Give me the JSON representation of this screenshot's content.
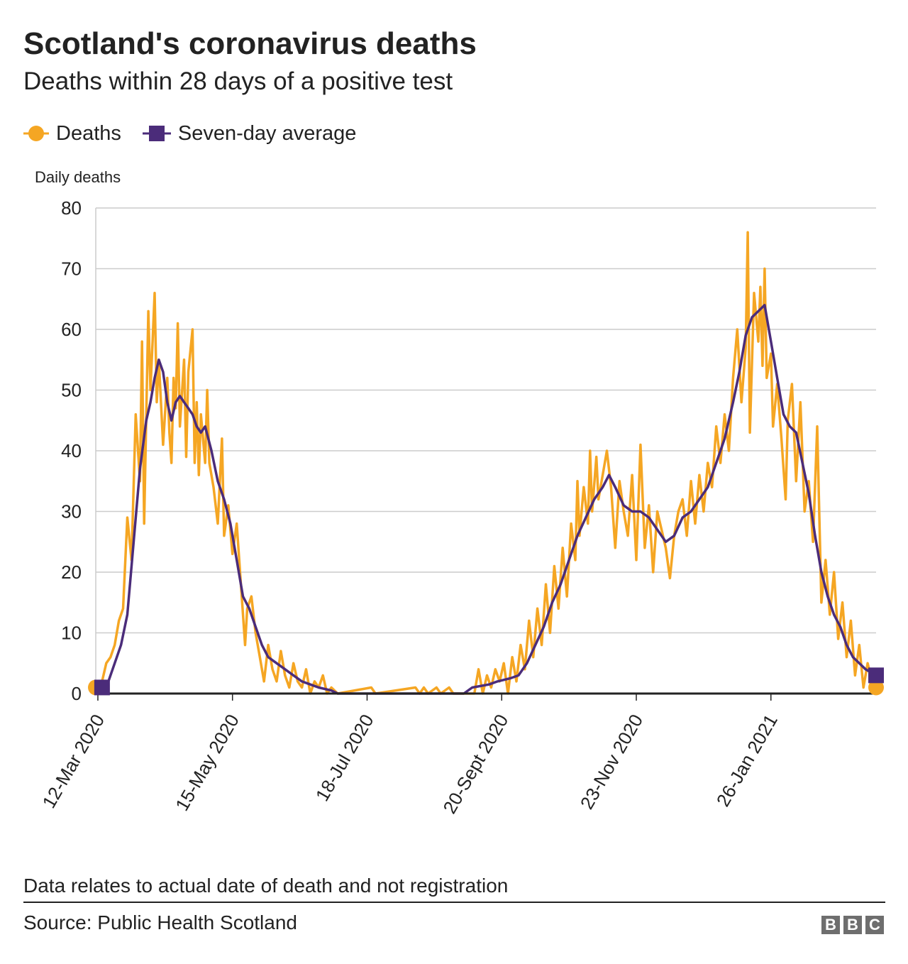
{
  "header": {
    "title": "Scotland's coronavirus deaths",
    "subtitle": "Deaths within 28 days of a positive test"
  },
  "legend": {
    "deaths_label": "Deaths",
    "average_label": "Seven-day average"
  },
  "colors": {
    "deaths": "#f5a623",
    "average": "#4b2c7a",
    "grid": "#cccccc",
    "axis": "#222222"
  },
  "chart_data": {
    "type": "line",
    "ylabel": "Daily deaths",
    "ylim": [
      0,
      80
    ],
    "yticks": [
      0,
      10,
      20,
      30,
      40,
      50,
      60,
      70,
      80
    ],
    "x_start": "2020-03-11",
    "x_end": "2021-03-17",
    "xticks": [
      {
        "date": "2020-03-12",
        "label": "12-Mar 2020"
      },
      {
        "date": "2020-05-15",
        "label": "15-May 2020"
      },
      {
        "date": "2020-07-18",
        "label": "18-Jul 2020"
      },
      {
        "date": "2020-09-20",
        "label": "20-Sept 2020"
      },
      {
        "date": "2020-11-23",
        "label": "23-Nov 2020"
      },
      {
        "date": "2021-01-26",
        "label": "26-Jan 2021"
      }
    ],
    "series": [
      {
        "name": "Deaths",
        "marker": "circle",
        "points": [
          [
            "2020-03-11",
            1
          ],
          [
            "2020-03-14",
            2
          ],
          [
            "2020-03-16",
            5
          ],
          [
            "2020-03-18",
            6
          ],
          [
            "2020-03-20",
            8
          ],
          [
            "2020-03-22",
            12
          ],
          [
            "2020-03-24",
            14
          ],
          [
            "2020-03-26",
            29
          ],
          [
            "2020-03-28",
            22
          ],
          [
            "2020-03-30",
            46
          ],
          [
            "2020-04-01",
            35
          ],
          [
            "2020-04-02",
            58
          ],
          [
            "2020-04-03",
            28
          ],
          [
            "2020-04-05",
            63
          ],
          [
            "2020-04-06",
            50
          ],
          [
            "2020-04-07",
            58
          ],
          [
            "2020-04-08",
            66
          ],
          [
            "2020-04-09",
            48
          ],
          [
            "2020-04-10",
            55
          ],
          [
            "2020-04-12",
            41
          ],
          [
            "2020-04-14",
            52
          ],
          [
            "2020-04-15",
            43
          ],
          [
            "2020-04-16",
            38
          ],
          [
            "2020-04-17",
            52
          ],
          [
            "2020-04-18",
            47
          ],
          [
            "2020-04-19",
            61
          ],
          [
            "2020-04-20",
            44
          ],
          [
            "2020-04-22",
            55
          ],
          [
            "2020-04-23",
            39
          ],
          [
            "2020-04-24",
            53
          ],
          [
            "2020-04-26",
            60
          ],
          [
            "2020-04-27",
            38
          ],
          [
            "2020-04-28",
            48
          ],
          [
            "2020-04-29",
            36
          ],
          [
            "2020-04-30",
            46
          ],
          [
            "2020-05-02",
            38
          ],
          [
            "2020-05-03",
            50
          ],
          [
            "2020-05-04",
            38
          ],
          [
            "2020-05-06",
            34
          ],
          [
            "2020-05-08",
            28
          ],
          [
            "2020-05-10",
            42
          ],
          [
            "2020-05-11",
            26
          ],
          [
            "2020-05-13",
            31
          ],
          [
            "2020-05-15",
            23
          ],
          [
            "2020-05-17",
            28
          ],
          [
            "2020-05-19",
            18
          ],
          [
            "2020-05-21",
            8
          ],
          [
            "2020-05-22",
            14
          ],
          [
            "2020-05-24",
            16
          ],
          [
            "2020-05-26",
            10
          ],
          [
            "2020-05-28",
            6
          ],
          [
            "2020-05-30",
            2
          ],
          [
            "2020-06-01",
            8
          ],
          [
            "2020-06-03",
            4
          ],
          [
            "2020-06-05",
            2
          ],
          [
            "2020-06-07",
            7
          ],
          [
            "2020-06-09",
            3
          ],
          [
            "2020-06-11",
            1
          ],
          [
            "2020-06-13",
            5
          ],
          [
            "2020-06-15",
            2
          ],
          [
            "2020-06-17",
            1
          ],
          [
            "2020-06-19",
            4
          ],
          [
            "2020-06-21",
            0
          ],
          [
            "2020-06-23",
            2
          ],
          [
            "2020-06-25",
            1
          ],
          [
            "2020-06-27",
            3
          ],
          [
            "2020-06-29",
            0
          ],
          [
            "2020-07-01",
            1
          ],
          [
            "2020-07-04",
            0
          ],
          [
            "2020-07-20",
            1
          ],
          [
            "2020-07-22",
            0
          ],
          [
            "2020-08-10",
            1
          ],
          [
            "2020-08-12",
            0
          ],
          [
            "2020-08-14",
            1
          ],
          [
            "2020-08-16",
            0
          ],
          [
            "2020-08-20",
            1
          ],
          [
            "2020-08-22",
            0
          ],
          [
            "2020-08-26",
            1
          ],
          [
            "2020-08-28",
            0
          ],
          [
            "2020-09-07",
            0
          ],
          [
            "2020-09-09",
            4
          ],
          [
            "2020-09-11",
            0
          ],
          [
            "2020-09-13",
            3
          ],
          [
            "2020-09-15",
            1
          ],
          [
            "2020-09-17",
            4
          ],
          [
            "2020-09-19",
            2
          ],
          [
            "2020-09-21",
            5
          ],
          [
            "2020-09-23",
            0
          ],
          [
            "2020-09-25",
            6
          ],
          [
            "2020-09-27",
            2
          ],
          [
            "2020-09-29",
            8
          ],
          [
            "2020-10-01",
            4
          ],
          [
            "2020-10-03",
            12
          ],
          [
            "2020-10-05",
            6
          ],
          [
            "2020-10-07",
            14
          ],
          [
            "2020-10-09",
            8
          ],
          [
            "2020-10-11",
            18
          ],
          [
            "2020-10-13",
            10
          ],
          [
            "2020-10-15",
            21
          ],
          [
            "2020-10-17",
            14
          ],
          [
            "2020-10-19",
            24
          ],
          [
            "2020-10-21",
            16
          ],
          [
            "2020-10-23",
            28
          ],
          [
            "2020-10-25",
            22
          ],
          [
            "2020-10-26",
            35
          ],
          [
            "2020-10-27",
            26
          ],
          [
            "2020-10-29",
            34
          ],
          [
            "2020-10-31",
            28
          ],
          [
            "2020-11-01",
            40
          ],
          [
            "2020-11-02",
            30
          ],
          [
            "2020-11-04",
            39
          ],
          [
            "2020-11-05",
            32
          ],
          [
            "2020-11-07",
            36
          ],
          [
            "2020-11-09",
            40
          ],
          [
            "2020-11-11",
            34
          ],
          [
            "2020-11-13",
            24
          ],
          [
            "2020-11-15",
            35
          ],
          [
            "2020-11-17",
            30
          ],
          [
            "2020-11-19",
            26
          ],
          [
            "2020-11-21",
            36
          ],
          [
            "2020-11-23",
            22
          ],
          [
            "2020-11-25",
            41
          ],
          [
            "2020-11-27",
            24
          ],
          [
            "2020-11-29",
            31
          ],
          [
            "2020-12-01",
            20
          ],
          [
            "2020-12-03",
            30
          ],
          [
            "2020-12-05",
            27
          ],
          [
            "2020-12-07",
            24
          ],
          [
            "2020-12-09",
            19
          ],
          [
            "2020-12-11",
            26
          ],
          [
            "2020-12-13",
            30
          ],
          [
            "2020-12-15",
            32
          ],
          [
            "2020-12-17",
            26
          ],
          [
            "2020-12-19",
            35
          ],
          [
            "2020-12-21",
            28
          ],
          [
            "2020-12-23",
            36
          ],
          [
            "2020-12-25",
            30
          ],
          [
            "2020-12-27",
            38
          ],
          [
            "2020-12-29",
            34
          ],
          [
            "2020-12-31",
            44
          ],
          [
            "2021-01-02",
            38
          ],
          [
            "2021-01-04",
            46
          ],
          [
            "2021-01-06",
            40
          ],
          [
            "2021-01-08",
            52
          ],
          [
            "2021-01-10",
            60
          ],
          [
            "2021-01-12",
            48
          ],
          [
            "2021-01-14",
            57
          ],
          [
            "2021-01-15",
            76
          ],
          [
            "2021-01-16",
            43
          ],
          [
            "2021-01-18",
            66
          ],
          [
            "2021-01-20",
            58
          ],
          [
            "2021-01-21",
            67
          ],
          [
            "2021-01-22",
            54
          ],
          [
            "2021-01-23",
            70
          ],
          [
            "2021-01-24",
            52
          ],
          [
            "2021-01-26",
            56
          ],
          [
            "2021-01-27",
            44
          ],
          [
            "2021-01-29",
            51
          ],
          [
            "2021-01-31",
            42
          ],
          [
            "2021-02-02",
            32
          ],
          [
            "2021-02-03",
            45
          ],
          [
            "2021-02-05",
            51
          ],
          [
            "2021-02-07",
            35
          ],
          [
            "2021-02-09",
            48
          ],
          [
            "2021-02-11",
            30
          ],
          [
            "2021-02-13",
            35
          ],
          [
            "2021-02-15",
            25
          ],
          [
            "2021-02-17",
            44
          ],
          [
            "2021-02-19",
            15
          ],
          [
            "2021-02-21",
            22
          ],
          [
            "2021-02-23",
            13
          ],
          [
            "2021-02-25",
            20
          ],
          [
            "2021-02-27",
            9
          ],
          [
            "2021-03-01",
            15
          ],
          [
            "2021-03-03",
            6
          ],
          [
            "2021-03-05",
            12
          ],
          [
            "2021-03-07",
            3
          ],
          [
            "2021-03-09",
            8
          ],
          [
            "2021-03-11",
            1
          ],
          [
            "2021-03-13",
            5
          ],
          [
            "2021-03-15",
            2
          ],
          [
            "2021-03-17",
            1
          ]
        ]
      },
      {
        "name": "Seven-day average",
        "marker": "square",
        "points": [
          [
            "2020-03-14",
            1
          ],
          [
            "2020-03-17",
            2
          ],
          [
            "2020-03-20",
            5
          ],
          [
            "2020-03-23",
            8
          ],
          [
            "2020-03-26",
            13
          ],
          [
            "2020-03-29",
            25
          ],
          [
            "2020-04-01",
            37
          ],
          [
            "2020-04-04",
            45
          ],
          [
            "2020-04-06",
            48
          ],
          [
            "2020-04-08",
            52
          ],
          [
            "2020-04-10",
            55
          ],
          [
            "2020-04-12",
            53
          ],
          [
            "2020-04-14",
            48
          ],
          [
            "2020-04-16",
            45
          ],
          [
            "2020-04-18",
            48
          ],
          [
            "2020-04-20",
            49
          ],
          [
            "2020-04-22",
            48
          ],
          [
            "2020-04-24",
            47
          ],
          [
            "2020-04-26",
            46
          ],
          [
            "2020-04-28",
            44
          ],
          [
            "2020-04-30",
            43
          ],
          [
            "2020-05-02",
            44
          ],
          [
            "2020-05-05",
            40
          ],
          [
            "2020-05-08",
            35
          ],
          [
            "2020-05-11",
            32
          ],
          [
            "2020-05-14",
            28
          ],
          [
            "2020-05-17",
            22
          ],
          [
            "2020-05-20",
            16
          ],
          [
            "2020-05-23",
            14
          ],
          [
            "2020-05-26",
            11
          ],
          [
            "2020-05-29",
            8
          ],
          [
            "2020-06-01",
            6
          ],
          [
            "2020-06-05",
            5
          ],
          [
            "2020-06-09",
            4
          ],
          [
            "2020-06-13",
            3
          ],
          [
            "2020-06-17",
            2
          ],
          [
            "2020-06-21",
            1.5
          ],
          [
            "2020-06-25",
            1
          ],
          [
            "2020-07-01",
            0.5
          ],
          [
            "2020-07-04",
            0
          ],
          [
            "2020-09-02",
            0
          ],
          [
            "2020-09-06",
            1
          ],
          [
            "2020-09-14",
            1.5
          ],
          [
            "2020-09-18",
            2
          ],
          [
            "2020-09-24",
            2.5
          ],
          [
            "2020-09-28",
            3
          ],
          [
            "2020-10-02",
            5
          ],
          [
            "2020-10-06",
            8
          ],
          [
            "2020-10-10",
            11
          ],
          [
            "2020-10-14",
            15
          ],
          [
            "2020-10-18",
            18
          ],
          [
            "2020-10-22",
            22
          ],
          [
            "2020-10-26",
            26
          ],
          [
            "2020-10-30",
            29
          ],
          [
            "2020-11-03",
            32
          ],
          [
            "2020-11-07",
            34
          ],
          [
            "2020-11-10",
            36
          ],
          [
            "2020-11-13",
            34
          ],
          [
            "2020-11-17",
            31
          ],
          [
            "2020-11-21",
            30
          ],
          [
            "2020-11-25",
            30
          ],
          [
            "2020-11-29",
            29
          ],
          [
            "2020-12-03",
            27
          ],
          [
            "2020-12-07",
            25
          ],
          [
            "2020-12-11",
            26
          ],
          [
            "2020-12-15",
            29
          ],
          [
            "2020-12-19",
            30
          ],
          [
            "2020-12-23",
            32
          ],
          [
            "2020-12-27",
            34
          ],
          [
            "2020-12-31",
            38
          ],
          [
            "2021-01-04",
            42
          ],
          [
            "2021-01-08",
            48
          ],
          [
            "2021-01-11",
            53
          ],
          [
            "2021-01-14",
            59
          ],
          [
            "2021-01-17",
            62
          ],
          [
            "2021-01-20",
            63
          ],
          [
            "2021-01-23",
            64
          ],
          [
            "2021-01-26",
            58
          ],
          [
            "2021-01-29",
            52
          ],
          [
            "2021-02-01",
            46
          ],
          [
            "2021-02-04",
            44
          ],
          [
            "2021-02-07",
            43
          ],
          [
            "2021-02-10",
            38
          ],
          [
            "2021-02-13",
            33
          ],
          [
            "2021-02-16",
            26
          ],
          [
            "2021-02-19",
            20
          ],
          [
            "2021-02-22",
            16
          ],
          [
            "2021-02-25",
            13
          ],
          [
            "2021-02-28",
            11
          ],
          [
            "2021-03-03",
            8
          ],
          [
            "2021-03-06",
            6
          ],
          [
            "2021-03-09",
            5
          ],
          [
            "2021-03-12",
            4
          ],
          [
            "2021-03-17",
            3
          ]
        ]
      }
    ]
  },
  "footer": {
    "note": "Data relates to actual date of death and not registration",
    "source": "Source: Public Health Scotland",
    "logo_letters": [
      "B",
      "B",
      "C"
    ]
  }
}
